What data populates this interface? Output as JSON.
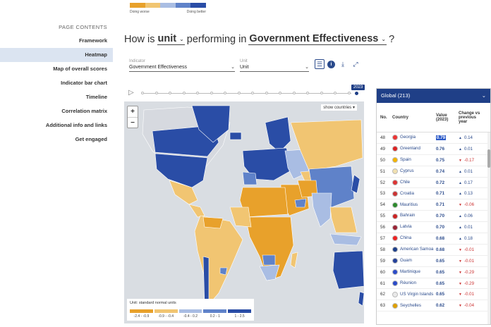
{
  "top_legend": {
    "worse": "Doing worse",
    "better": "Doing better",
    "colors": [
      "#e8a12b",
      "#f1c572",
      "#a9bde3",
      "#5f82c9",
      "#2a4da6"
    ]
  },
  "sidebar": {
    "heading": "PAGE CONTENTS",
    "items": [
      {
        "label": "Framework"
      },
      {
        "label": "Heatmap",
        "active": true
      },
      {
        "label": "Map of overall scores"
      },
      {
        "label": "Indicator bar chart"
      },
      {
        "label": "Timeline"
      },
      {
        "label": "Correlation matrix"
      },
      {
        "label": "Additional info and links"
      },
      {
        "label": "Get engaged"
      }
    ]
  },
  "title": {
    "prefix": "How is",
    "unit": "unit",
    "middle": "performing in",
    "indicator": "Government Effectiveness",
    "suffix": "?"
  },
  "filters": {
    "indicator_label": "Indicator",
    "indicator_value": "Government Effectiveness",
    "unit_label": "Unit",
    "unit_value": "Unit"
  },
  "timeline": {
    "year": "2023"
  },
  "map": {
    "show_countries": "show countries",
    "zoom_in": "+",
    "zoom_out": "−",
    "legend_unit": "Unit: standard normal units",
    "legend_labels": [
      "-2.4 - -0.9",
      "-0.9 - -0.4",
      "-0.4 - 0.2",
      "0.2 - 1",
      "1 - 2.5"
    ],
    "legend_colors": [
      "#e8a12b",
      "#f1c572",
      "#a9bde3",
      "#5f82c9",
      "#2a4da6"
    ]
  },
  "panel": {
    "header": "Global (213)",
    "col_no": "No.",
    "col_country": "Country",
    "col_value": "Value (2023)",
    "col_change": "Change vs previous year",
    "rows": [
      {
        "no": "48",
        "country": "Georgia",
        "value": "0.79",
        "change": "0.14",
        "dir": "up",
        "flag": "#e33",
        "hl": true
      },
      {
        "no": "49",
        "country": "Greenland",
        "value": "0.76",
        "change": "0.01",
        "dir": "up",
        "flag": "#d22"
      },
      {
        "no": "50",
        "country": "Spain",
        "value": "0.75",
        "change": "-0.17",
        "dir": "down",
        "flag": "#f4b400"
      },
      {
        "no": "51",
        "country": "Cyprus",
        "value": "0.74",
        "change": "0.01",
        "dir": "up",
        "flag": "#f0e0b0"
      },
      {
        "no": "52",
        "country": "Chile",
        "value": "0.72",
        "change": "0.17",
        "dir": "up",
        "flag": "#d33"
      },
      {
        "no": "53",
        "country": "Croatia",
        "value": "0.71",
        "change": "0.13",
        "dir": "up",
        "flag": "#c33"
      },
      {
        "no": "54",
        "country": "Mauritius",
        "value": "0.71",
        "change": "-0.06",
        "dir": "down",
        "flag": "#2c8a2c"
      },
      {
        "no": "55",
        "country": "Bahrain",
        "value": "0.70",
        "change": "0.06",
        "dir": "up",
        "flag": "#c22"
      },
      {
        "no": "56",
        "country": "Latvia",
        "value": "0.70",
        "change": "0.01",
        "dir": "up",
        "flag": "#9b2335"
      },
      {
        "no": "57",
        "country": "China",
        "value": "0.68",
        "change": "0.18",
        "dir": "up",
        "flag": "#e22"
      },
      {
        "no": "58",
        "country": "American Samoa",
        "value": "0.68",
        "change": "-0.01",
        "dir": "down",
        "flag": "#1d3f8a"
      },
      {
        "no": "59",
        "country": "Guam",
        "value": "0.65",
        "change": "-0.01",
        "dir": "down",
        "flag": "#23409a"
      },
      {
        "no": "60",
        "country": "Martinique",
        "value": "0.65",
        "change": "-0.29",
        "dir": "down",
        "flag": "#2b4bc8"
      },
      {
        "no": "61",
        "country": "Réunion",
        "value": "0.65",
        "change": "-0.29",
        "dir": "down",
        "flag": "#2b4bc8"
      },
      {
        "no": "62",
        "country": "US Virgin Islands",
        "value": "0.65",
        "change": "-0.01",
        "dir": "down",
        "flag": "#e9e9e9"
      },
      {
        "no": "63",
        "country": "Seychelles",
        "value": "0.62",
        "change": "-0.04",
        "dir": "down",
        "flag": "#e0a000"
      }
    ]
  }
}
